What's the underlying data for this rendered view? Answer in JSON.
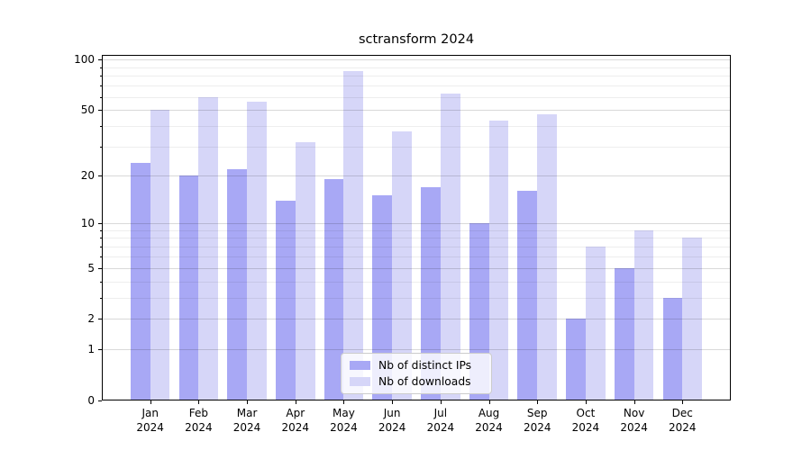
{
  "title": "sctransform 2024",
  "chart_data": {
    "type": "bar",
    "title": "sctransform 2024",
    "y_scale": "log1p",
    "grid": "on",
    "legend_position": "lower center",
    "xlabel": "",
    "ylabel": "",
    "ylim": [
      0,
      107
    ],
    "categories": [
      "Jan 2024",
      "Feb 2024",
      "Mar 2024",
      "Apr 2024",
      "May 2024",
      "Jun 2024",
      "Jul 2024",
      "Aug 2024",
      "Sep 2024",
      "Oct 2024",
      "Nov 2024",
      "Dec 2024"
    ],
    "x_tick_month_line": [
      "Jan",
      "Feb",
      "Mar",
      "Apr",
      "May",
      "Jun",
      "Jul",
      "Aug",
      "Sep",
      "Oct",
      "Nov",
      "Dec"
    ],
    "x_tick_year_line": "2024",
    "series": [
      {
        "name": "Nb of distinct IPs",
        "color": "#a8a8f5",
        "values": [
          24,
          20,
          22,
          14,
          19,
          15,
          17,
          10,
          16,
          2,
          5,
          3
        ]
      },
      {
        "name": "Nb of downloads",
        "color": "#d6d6f8",
        "values": [
          50,
          60,
          56,
          32,
          86,
          37,
          63,
          43,
          47,
          7,
          9,
          8
        ]
      }
    ],
    "y_major_ticks": [
      0,
      1,
      2,
      5,
      10,
      20,
      50,
      100
    ],
    "y_minor_ticks": [
      3,
      4,
      6,
      7,
      8,
      9,
      30,
      40,
      60,
      70,
      80,
      90
    ]
  },
  "legend": {
    "items": [
      {
        "label": "Nb of distinct IPs",
        "color": "#a8a8f5"
      },
      {
        "label": "Nb of downloads",
        "color": "#d6d6f8"
      }
    ]
  },
  "colors": {
    "background": "#ffffff",
    "spine": "#000000",
    "grid_major": "rgba(0,0,0,0.15)",
    "grid_minor": "rgba(0,0,0,0.065)",
    "text": "#000000"
  }
}
